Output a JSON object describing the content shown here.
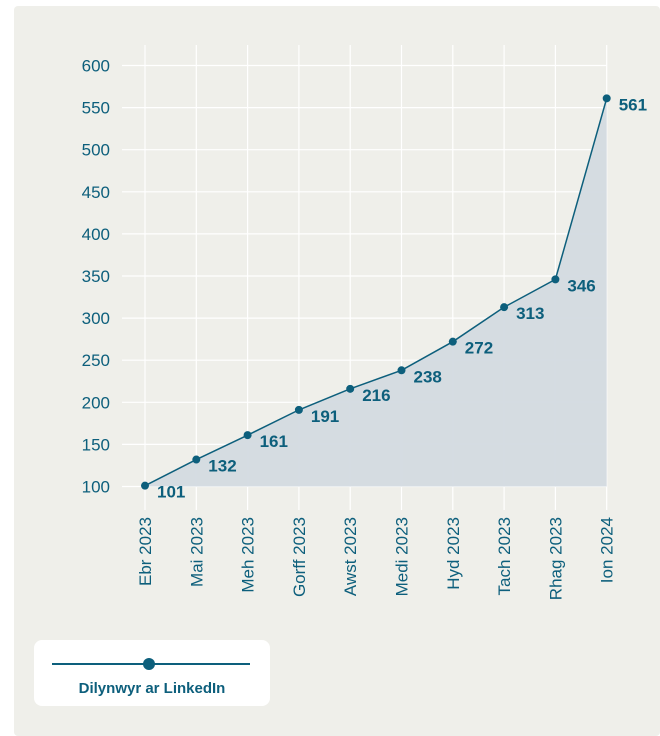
{
  "chart_data": {
    "type": "area",
    "categories": [
      "Ebr 2023",
      "Mai 2023",
      "Meh 2023",
      "Gorff 2023",
      "Awst 2023",
      "Medi 2023",
      "Hyd 2023",
      "Tach 2023",
      "Rhag 2023",
      "Ion 2024"
    ],
    "series": [
      {
        "name": "Dilynwyr ar LinkedIn",
        "values": [
          101,
          132,
          161,
          191,
          216,
          238,
          272,
          313,
          346,
          561
        ]
      }
    ],
    "yticks": [
      100,
      150,
      200,
      250,
      300,
      350,
      400,
      450,
      500,
      550,
      600
    ],
    "ylim": [
      100,
      600
    ],
    "grid": "vertical and horizontal",
    "legend_position": "bottom-left",
    "colors": {
      "line": "#0d5f7c",
      "fill": "#d3dae0",
      "text": "#0d5f7c",
      "grid": "#ffffff",
      "background": "#efefea"
    }
  },
  "legend": {
    "label": "Dilynwyr ar LinkedIn"
  }
}
